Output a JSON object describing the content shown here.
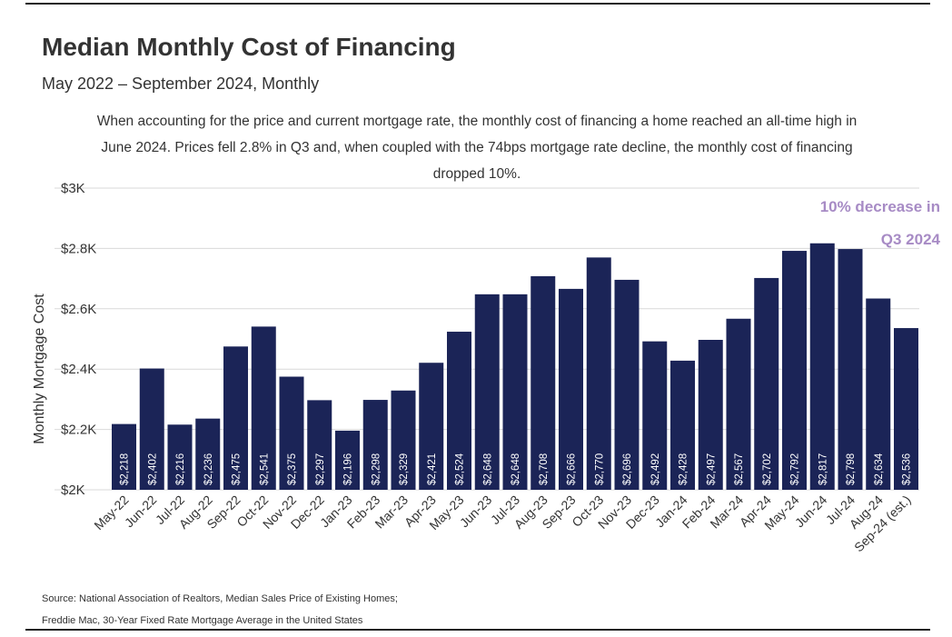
{
  "page": {
    "title": "Median Monthly Cost of Financing",
    "subtitle": "May 2022 – September 2024, Monthly",
    "description": "When accounting for the price and current mortgage rate, the monthly cost of financing a home reached an all-time high in June 2024. Prices fell 2.8% in Q3 and, when coupled with the 74bps mortgage rate decline, the monthly cost of financing dropped 10%.",
    "source_line1": "Source: National Association of Realtors, Median Sales Price of Existing Homes;",
    "source_line2": "Freddie Mac, 30-Year Fixed Rate Mortgage Average in the United States"
  },
  "colors": {
    "bar": "#1b2457",
    "grid": "#d9d9d9",
    "annotation": "#a78bc5"
  },
  "chart_data": {
    "type": "bar",
    "title": "Median Monthly Cost of Financing",
    "xlabel": "",
    "ylabel": "Monthly Mortgage Cost",
    "ylim": [
      2000,
      3000
    ],
    "yticks": [
      2000,
      2200,
      2400,
      2600,
      2800,
      3000
    ],
    "ytick_labels": [
      "$2K",
      "$2.2K",
      "$2.4K",
      "$2.6K",
      "$2.8K",
      "$3K"
    ],
    "grid": true,
    "categories": [
      "May-22",
      "Jun-22",
      "Jul-22",
      "Aug-22",
      "Sep-22",
      "Oct-22",
      "Nov-22",
      "Dec-22",
      "Jan-23",
      "Feb-23",
      "Mar-23",
      "Apr-23",
      "May-23",
      "Jun-23",
      "Jul-23",
      "Aug-23",
      "Sep-23",
      "Oct-23",
      "Nov-23",
      "Dec-23",
      "Jan-24",
      "Feb-24",
      "Mar-24",
      "Apr-24",
      "May-24",
      "Jun-24",
      "Jul-24",
      "Aug-24",
      "Sep-24 (est.)"
    ],
    "values": [
      2218,
      2402,
      2216,
      2236,
      2475,
      2541,
      2375,
      2297,
      2196,
      2298,
      2329,
      2421,
      2524,
      2648,
      2648,
      2708,
      2666,
      2770,
      2696,
      2492,
      2428,
      2497,
      2567,
      2702,
      2792,
      2817,
      2798,
      2634,
      2536
    ],
    "data_labels": [
      "$2,218",
      "$2,402",
      "$2,216",
      "$2,236",
      "$2,475",
      "$2,541",
      "$2,375",
      "$2,297",
      "$2,196",
      "$2,298",
      "$2,329",
      "$2,421",
      "$2,524",
      "$2,648",
      "$2,648",
      "$2,708",
      "$2,666",
      "$2,770",
      "$2,696",
      "$2,492",
      "$2,428",
      "$2,497",
      "$2,567",
      "$2,702",
      "$2,792",
      "$2,817",
      "$2,798",
      "$2,634",
      "$2,536"
    ],
    "annotation": {
      "line1": "10% decrease in",
      "line2": "Q3 2024"
    }
  }
}
